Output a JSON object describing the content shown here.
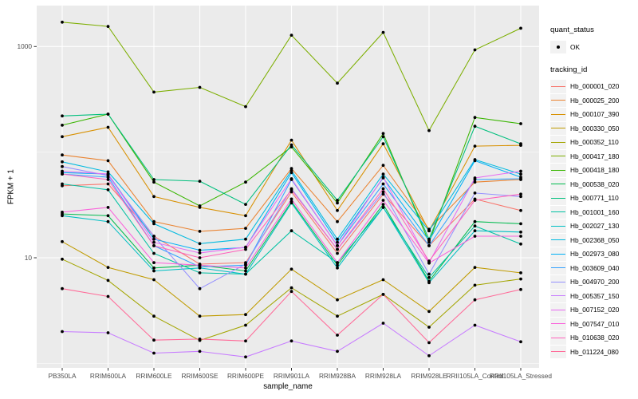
{
  "figure": {
    "y_axis_title": "FPKM + 1",
    "x_axis_title": "sample_name",
    "colors": {
      "panel_background": "#EBEBEB",
      "grid_major": "#FFFFFF",
      "grid_minor": "#FFFFFF",
      "axis_text": "#4D4D4D",
      "tick_mark": "#333333",
      "point": "#000000",
      "legend_key_background": "#F2F2F2"
    }
  },
  "legend": {
    "quant_status_title": "quant_status",
    "ok_label": "OK",
    "tracking_id_title": "tracking_id"
  },
  "chart_data": {
    "type": "line",
    "xlabel": "sample_name",
    "ylabel": "FPKM + 1",
    "y_scale": "log10",
    "y_tick_values": [
      1000,
      10
    ],
    "y_tick_labels": [
      "1000",
      "10"
    ],
    "y_minor_gridlines": [
      100,
      1
    ],
    "ylim": [
      0.9,
      2400
    ],
    "grid": true,
    "legend_position": "right",
    "point_shape": "solid-black-circle",
    "quant_status_series": [
      {
        "label": "OK",
        "marker": "point",
        "color": "#000000"
      }
    ],
    "categories": [
      "PB350LA",
      "RRIM600LA",
      "RRIM600LE",
      "RRIM600SE",
      "RRIM600PE",
      "RRIM901LA",
      "RRIM928BA",
      "RRIM928LA",
      "RRIM928LE",
      "RRII105LA_Control",
      "RRII105LA_Stressed"
    ],
    "series": [
      {
        "name": "Hb_000001_020",
        "color": "#F8766D",
        "values": [
          48,
          50,
          16,
          8.7,
          9,
          42,
          11,
          40,
          13,
          36,
          28
        ]
      },
      {
        "name": "Hb_000025_200",
        "color": "#EA8331",
        "values": [
          94,
          83,
          22,
          17.8,
          19,
          70,
          22,
          75,
          18.6,
          52,
          55
        ]
      },
      {
        "name": "Hb_000107_390",
        "color": "#D89000",
        "values": [
          140,
          172,
          38,
          30,
          25,
          130,
          28,
          120,
          18,
          114,
          116
        ]
      },
      {
        "name": "Hb_000330_050",
        "color": "#C09B00",
        "values": [
          14.2,
          8.1,
          6.2,
          2.8,
          2.9,
          7.8,
          4.0,
          6.2,
          3.1,
          8.1,
          7.2
        ]
      },
      {
        "name": "Hb_000352_110",
        "color": "#A3A500",
        "values": [
          9.7,
          6.1,
          2.8,
          1.65,
          2.3,
          5.2,
          2.8,
          4.5,
          2.2,
          5.5,
          6.3
        ]
      },
      {
        "name": "Hb_000417_180",
        "color": "#7CAE00",
        "values": [
          1700,
          1550,
          370,
          410,
          270,
          1280,
          450,
          1360,
          160,
          930,
          1490
        ]
      },
      {
        "name": "Hb_000418_180",
        "color": "#39B600",
        "values": [
          180,
          229,
          52,
          31,
          52,
          112,
          33,
          150,
          14,
          213,
          186
        ]
      },
      {
        "name": "Hb_000538_020",
        "color": "#00BB4E",
        "values": [
          26,
          25,
          8,
          8.5,
          7.5,
          34,
          8.5,
          32,
          6,
          22,
          21
        ]
      },
      {
        "name": "Hb_000771_110",
        "color": "#00BF7D",
        "values": [
          220,
          229,
          55,
          53,
          32,
          117,
          35,
          140,
          15,
          176,
          120
        ]
      },
      {
        "name": "Hb_001001_160",
        "color": "#00C1A3",
        "values": [
          50,
          44,
          11,
          7.2,
          7,
          18,
          9,
          30,
          6.5,
          20,
          13.5
        ]
      },
      {
        "name": "Hb_002027_130",
        "color": "#00BFC4",
        "values": [
          25,
          22,
          7.5,
          8,
          7,
          33,
          8,
          30,
          5.8,
          18,
          17.5
        ]
      },
      {
        "name": "Hb_002368_050",
        "color": "#00BAE0",
        "values": [
          81,
          65,
          21,
          13.6,
          15,
          67,
          15,
          62,
          18,
          85,
          62
        ]
      },
      {
        "name": "Hb_002973_080",
        "color": "#00B0F6",
        "values": [
          64,
          62,
          15,
          11.8,
          12.5,
          64,
          14,
          57,
          14.5,
          83,
          58
        ]
      },
      {
        "name": "Hb_003609_040",
        "color": "#35A2FF",
        "values": [
          62,
          58,
          13,
          8.2,
          8.5,
          55,
          13,
          50,
          13,
          55,
          56
        ]
      },
      {
        "name": "Hb_004970_200",
        "color": "#9590FF",
        "values": [
          73,
          60,
          16,
          5.1,
          8.7,
          45,
          12,
          42,
          7,
          41,
          38
        ]
      },
      {
        "name": "Hb_005357_150",
        "color": "#C77CFF",
        "values": [
          2.0,
          1.95,
          1.25,
          1.3,
          1.15,
          1.63,
          1.3,
          2.4,
          1.18,
          2.3,
          1.6
        ]
      },
      {
        "name": "Hb_007152_020",
        "color": "#E76BF3",
        "values": [
          66,
          62,
          14,
          11.1,
          12.6,
          56,
          13,
          58,
          9,
          57,
          66
        ]
      },
      {
        "name": "Hb_007547_010",
        "color": "#FA62DB",
        "values": [
          27,
          30,
          9,
          8.5,
          8,
          36,
          9,
          35,
          8.9,
          16,
          16
        ]
      },
      {
        "name": "Hb_010638_020",
        "color": "#FF62BC",
        "values": [
          62,
          55,
          13,
          10,
          12,
          44,
          12,
          45,
          9.3,
          35,
          40
        ]
      },
      {
        "name": "Hb_011224_080",
        "color": "#FF6A98",
        "values": [
          5.1,
          4.3,
          1.66,
          1.7,
          1.63,
          4.8,
          1.85,
          4.5,
          1.57,
          4.0,
          5.0
        ]
      }
    ]
  }
}
